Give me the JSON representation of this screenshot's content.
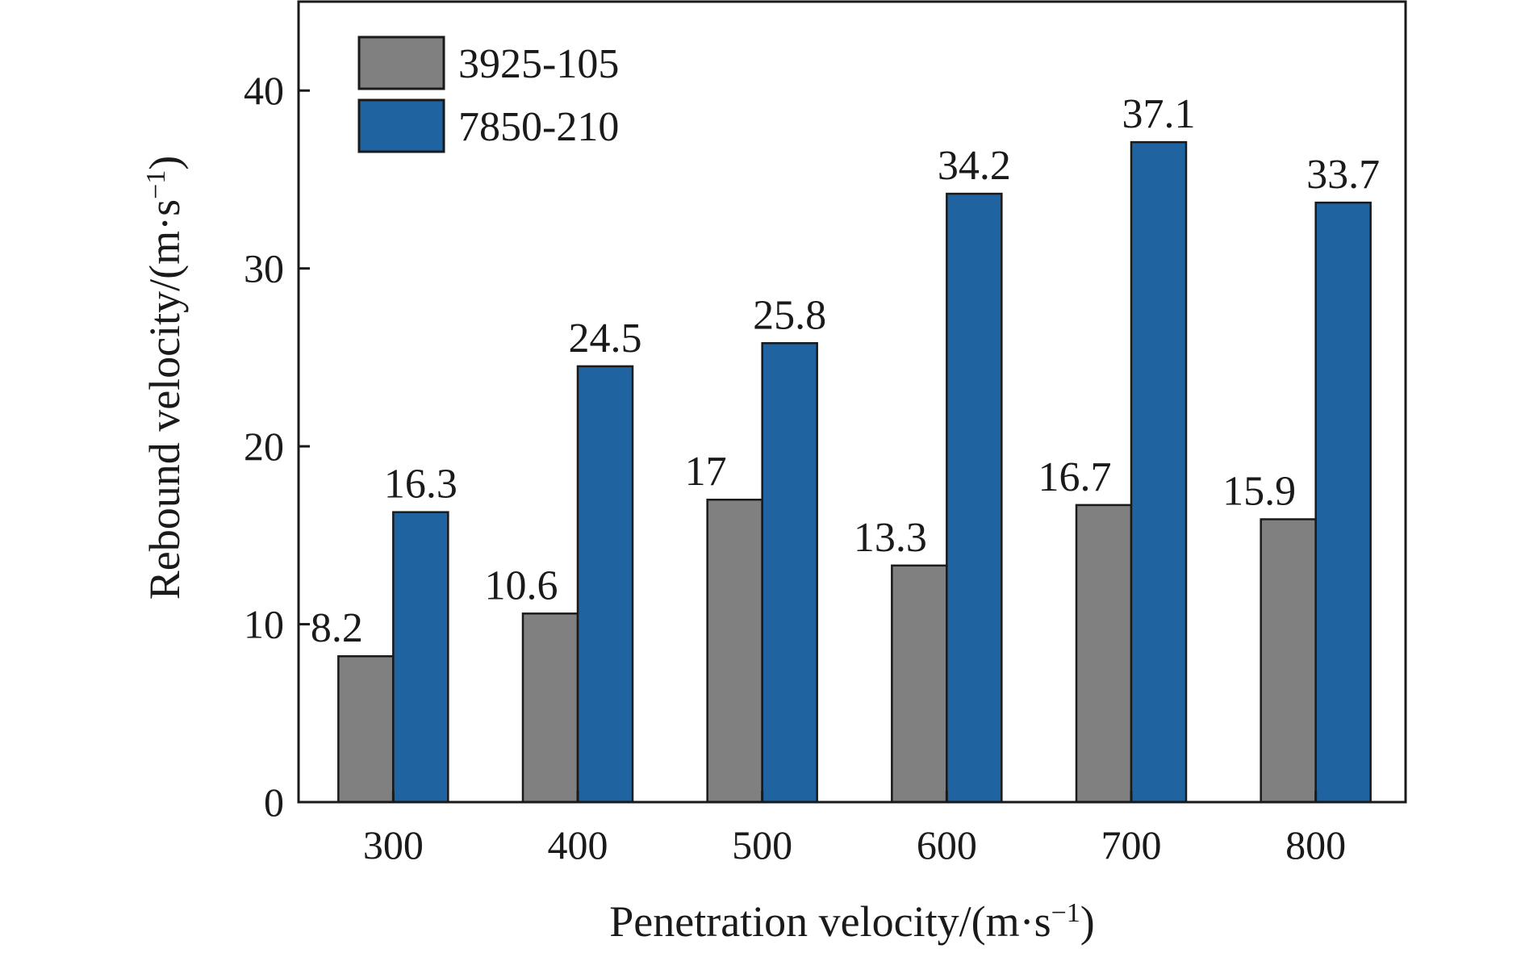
{
  "chart_data": {
    "type": "bar",
    "title": "",
    "xlabel": "Penetration velocity/(m·s",
    "xlabel_sup": "−1",
    "xlabel_tail": ")",
    "ylabel": "Rebound velocity/(m·s",
    "ylabel_sup": "−1",
    "ylabel_tail": ")",
    "categories": [
      "300",
      "400",
      "500",
      "600",
      "700",
      "800"
    ],
    "series": [
      {
        "name": "3925-105",
        "color": "#808080",
        "values": [
          8.2,
          10.6,
          17,
          13.3,
          16.7,
          15.9
        ]
      },
      {
        "name": "7850-210",
        "color": "#1f64a0",
        "values": [
          16.3,
          24.5,
          25.8,
          34.2,
          37.1,
          33.7
        ]
      }
    ],
    "data_labels": [
      [
        "8.2",
        "10.6",
        "17",
        "13.3",
        "16.7",
        "15.9"
      ],
      [
        "16.3",
        "24.5",
        "25.8",
        "34.2",
        "37.1",
        "33.7"
      ]
    ],
    "ylim": [
      0,
      45
    ],
    "yticks": [
      0,
      10,
      20,
      30,
      40
    ],
    "ytick_labels": [
      "0",
      "10",
      "20",
      "30",
      "40"
    ],
    "grid": false,
    "legend_position": "top-left"
  }
}
